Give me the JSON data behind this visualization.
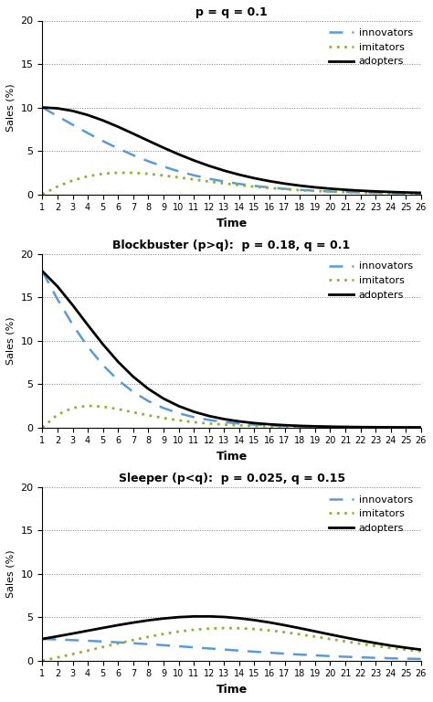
{
  "panels": [
    {
      "title": "p = q = 0.1",
      "p": 0.1,
      "q": 0.1,
      "ylim": [
        0,
        20
      ],
      "yticks": [
        0,
        5,
        10,
        15,
        20
      ]
    },
    {
      "title": "Blockbuster (p>q):  p = 0.18, q = 0.1",
      "p": 0.18,
      "q": 0.1,
      "ylim": [
        0,
        20
      ],
      "yticks": [
        0,
        5,
        10,
        15,
        20
      ]
    },
    {
      "title": "Sleeper (p<q):  p = 0.025, q = 0.15",
      "p": 0.025,
      "q": 0.15,
      "ylim": [
        0,
        20
      ],
      "yticks": [
        0,
        5,
        10,
        15,
        20
      ]
    }
  ],
  "time_steps": 26,
  "innovators_color": "#5b9bd5",
  "imitators_color": "#8db23a",
  "adopters_color": "#000000",
  "bg_color": "#ffffff",
  "ylabel": "Sales (%)",
  "xlabel": "Time",
  "legend_labels": [
    "innovators",
    "imitators",
    "adopters"
  ]
}
